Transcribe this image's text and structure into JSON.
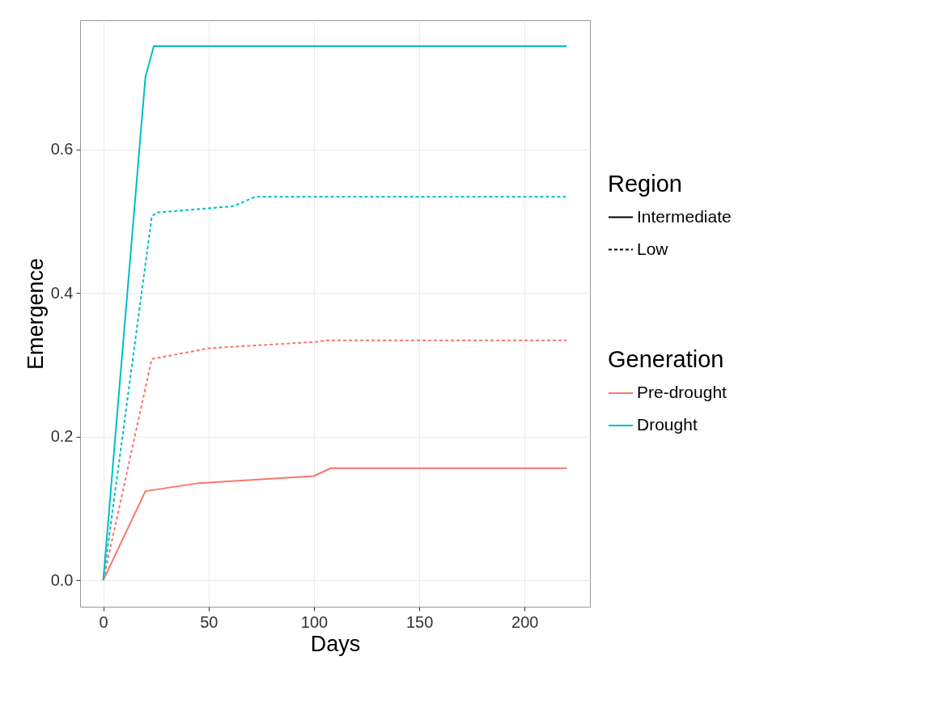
{
  "chart_data": {
    "type": "line",
    "xlabel": "Days",
    "ylabel": "Emergence",
    "xlim": [
      -11,
      231
    ],
    "xticks": [
      0,
      50,
      100,
      150,
      200
    ],
    "ylim": [
      -0.037,
      0.78
    ],
    "yticks": [
      {
        "value": 0,
        "label": "0.0"
      },
      {
        "value": 0.2,
        "label": "0.2"
      },
      {
        "value": 0.4,
        "label": "0.4"
      },
      {
        "value": 0.6,
        "label": "0.6"
      }
    ],
    "grid": true,
    "legend": "right",
    "legend_title": [
      "Region",
      "Generation"
    ],
    "series": [
      {
        "name": "Pre-drought",
        "line_style": "solid",
        "color": "#f8766d",
        "x": [
          0,
          20,
          45,
          100,
          108,
          220
        ],
        "values": [
          0,
          0.124,
          0.135,
          0.145,
          0.156,
          0.156
        ]
      },
      {
        "line_style": "dashed",
        "color": "#f8766d",
        "x": [
          0,
          23,
          50,
          101,
          106,
          220
        ],
        "values": [
          0,
          0.308,
          0.323,
          0.332,
          0.334,
          0.334
        ]
      },
      {
        "name": "Drought",
        "line_style": "solid",
        "color": "#00bfc4",
        "x": [
          0,
          20,
          24,
          220
        ],
        "values": [
          0,
          0.701,
          0.744,
          0.744
        ]
      },
      {
        "line_style": "dashed",
        "color": "#00bfc4",
        "x": [
          0,
          23,
          25,
          62,
          72,
          220
        ],
        "values": [
          0,
          0.506,
          0.512,
          0.521,
          0.534,
          0.534
        ]
      },
      {
        "name": "Intermediate",
        "line_style": "solid",
        "color": "#000000"
      },
      {
        "name": "Low",
        "line_style": "dashed",
        "color": "#000000"
      }
    ]
  }
}
